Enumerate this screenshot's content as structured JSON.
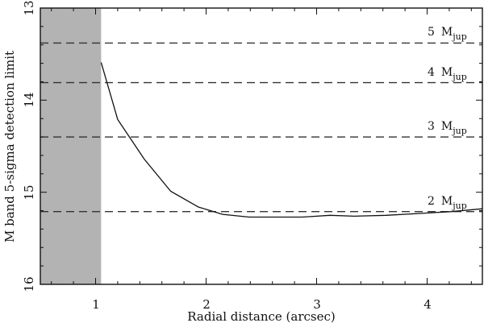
{
  "chart_data": {
    "type": "line",
    "title": "",
    "xlabel": "Radial distance (arcsec)",
    "ylabel": "M band 5-sigma detection limit",
    "xlim": [
      0.5,
      4.5
    ],
    "ylim": [
      16,
      13
    ],
    "y_inverted": true,
    "grid": false,
    "x_ticks": [
      1,
      2,
      3,
      4
    ],
    "y_ticks": [
      13,
      14,
      15,
      16
    ],
    "shaded_region": {
      "x_from": 0.5,
      "x_to": 1.05,
      "color": "#b3b3b3"
    },
    "series": [
      {
        "name": "5-sigma detection limit",
        "x": [
          1.05,
          1.2,
          1.44,
          1.68,
          1.93,
          2.15,
          2.39,
          2.65,
          2.87,
          3.12,
          3.34,
          3.63,
          3.93,
          4.22,
          4.5
        ],
        "y": [
          13.59,
          14.21,
          14.64,
          14.99,
          15.16,
          15.24,
          15.27,
          15.27,
          15.27,
          15.25,
          15.26,
          15.25,
          15.23,
          15.21,
          15.18
        ]
      }
    ],
    "reference_lines": [
      {
        "label": "5",
        "unit": "M",
        "sub": "jup",
        "y": 13.38
      },
      {
        "label": "4",
        "unit": "M",
        "sub": "jup",
        "y": 13.81
      },
      {
        "label": "3",
        "unit": "M",
        "sub": "jup",
        "y": 14.4
      },
      {
        "label": "2",
        "unit": "M",
        "sub": "jup",
        "y": 15.21
      }
    ]
  },
  "labels": {
    "x_axis": "Radial distance (arcsec)",
    "y_axis": "M band 5-sigma detection limit",
    "x_ticks": [
      "1",
      "2",
      "3",
      "4"
    ],
    "y_ticks": [
      "13",
      "14",
      "15",
      "16"
    ],
    "ref": [
      {
        "num": "5",
        "unit": "M",
        "sub": "jup"
      },
      {
        "num": "4",
        "unit": "M",
        "sub": "jup"
      },
      {
        "num": "3",
        "unit": "M",
        "sub": "jup"
      },
      {
        "num": "2",
        "unit": "M",
        "sub": "jup"
      }
    ]
  }
}
